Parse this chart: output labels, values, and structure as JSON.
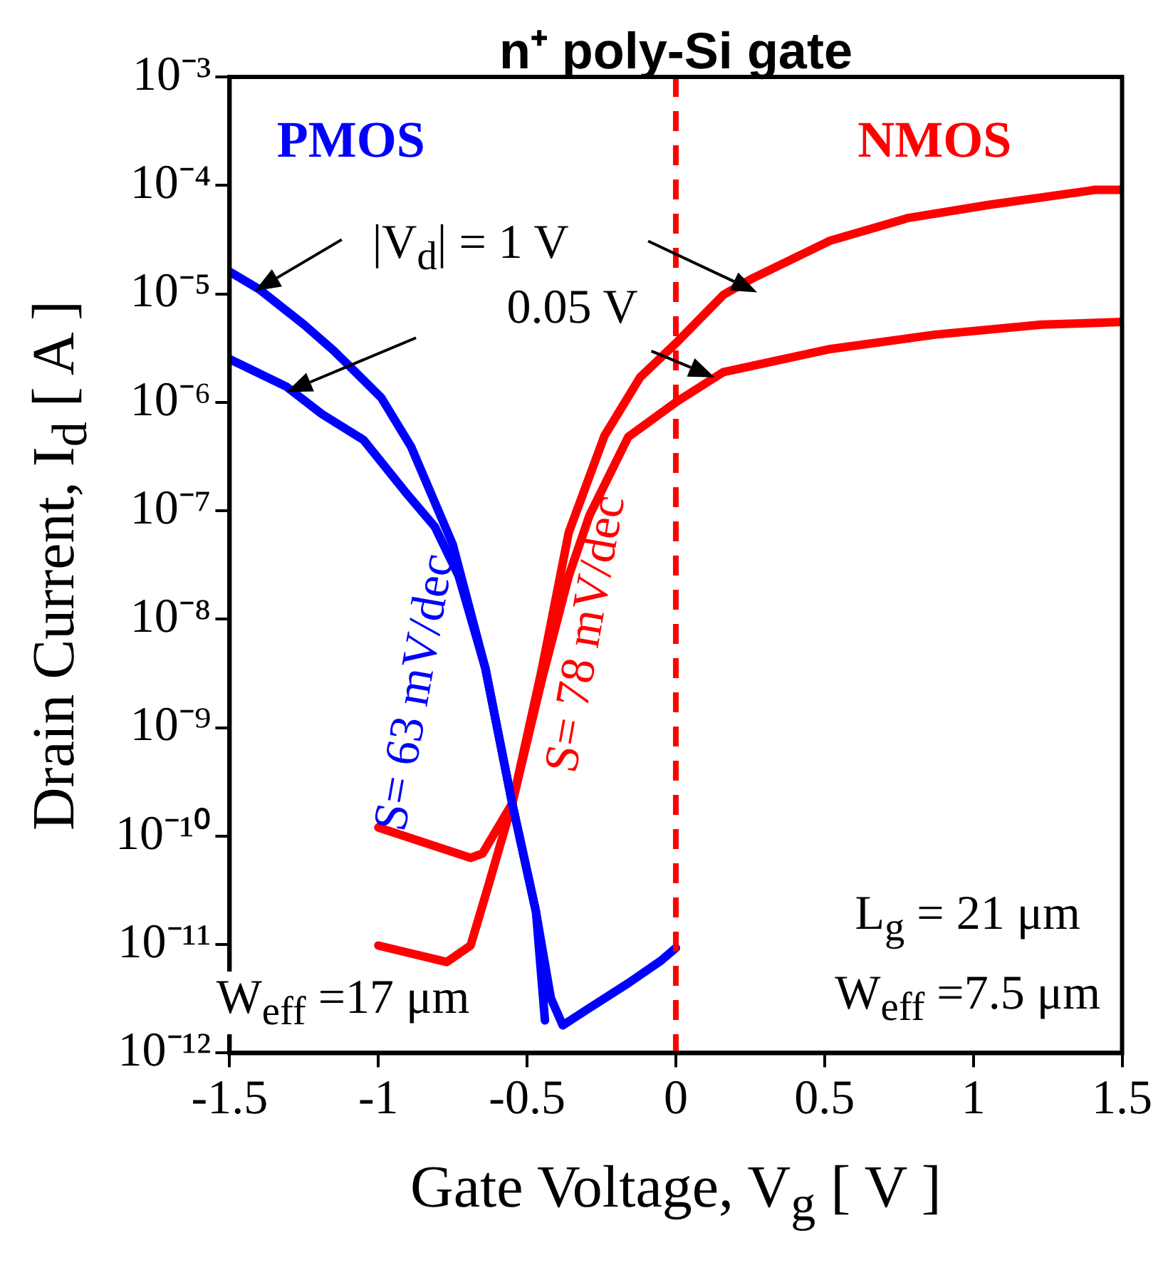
{
  "chart_data": {
    "type": "line",
    "title": "n⁺ poly-Si gate",
    "xlabel": "Gate Voltage, V$_{g}$ [ V ]",
    "ylabel": "Drain Current, I$_{d}$ [ A ]",
    "log": "y",
    "grid": false,
    "legend": false,
    "marker": "none",
    "line_style": "solid",
    "xlim": [
      -1.5,
      1.5
    ],
    "xticks": [
      -1.5,
      -1,
      -0.5,
      0,
      0.5,
      1,
      1.5
    ],
    "ylim": [
      1e-12,
      0.001
    ],
    "yticks": [
      {
        "value": 1e-12,
        "label": "10⁻¹²"
      },
      {
        "value": 1e-11,
        "label": "10⁻¹¹"
      },
      {
        "value": 1e-10,
        "label": "10⁻¹⁰"
      },
      {
        "value": 1e-09,
        "label": "10⁻⁹"
      },
      {
        "value": 1e-08,
        "label": "10⁻⁸"
      },
      {
        "value": 1e-07,
        "label": "10⁻⁷"
      },
      {
        "value": 1e-06,
        "label": "10⁻⁶"
      },
      {
        "value": 1e-05,
        "label": "10⁻⁵"
      },
      {
        "value": 0.0001,
        "label": "10⁻⁴"
      },
      {
        "value": 0.001,
        "label": "10⁻³"
      }
    ],
    "series": [
      {
        "color": "#0000ff",
        "x": [
          -1.5,
          -1.4,
          -1.25,
          -1.15,
          -0.99,
          -0.89,
          -0.75,
          -0.64,
          -0.55,
          -0.47,
          -0.44
        ],
        "values": [
          1.6e-05,
          1.1e-05,
          5.2e-06,
          3e-06,
          1.1e-06,
          3.9e-07,
          4.9e-08,
          3.5e-09,
          2e-10,
          2e-11,
          2e-12
        ]
      },
      {
        "color": "#0000ff",
        "x": [
          -1.5,
          -1.31,
          -1.19,
          -1.05,
          -0.91,
          -0.81,
          -0.73,
          -0.64,
          -0.55,
          -0.47,
          -0.42,
          -0.38,
          -0.3,
          -0.16,
          -0.05,
          0
        ],
        "values": [
          2.5e-06,
          1.4e-06,
          7.8e-07,
          4.5e-07,
          1.5e-07,
          7.1e-08,
          2.5e-08,
          3.5e-09,
          2e-10,
          2e-11,
          3.2e-12,
          1.8e-12,
          2.5e-12,
          4.4e-12,
          7.1e-12,
          9.3e-12
        ]
      },
      {
        "color": "#ff0000",
        "x": [
          -1,
          -0.77,
          -0.69,
          -0.63,
          -0.55,
          -0.45,
          -0.36,
          -0.24,
          -0.12,
          0,
          0.16,
          0.26,
          0.52,
          0.78,
          1.05,
          1.41,
          1.5
        ],
        "values": [
          9.8e-12,
          6.9e-12,
          9.8e-12,
          3.5e-11,
          2e-10,
          3.5e-09,
          6.3e-08,
          4.9e-07,
          1.7e-06,
          3.5e-06,
          9.8e-06,
          1.4e-05,
          3.1e-05,
          5e-05,
          6.6e-05,
          9.1e-05,
          9.1e-05
        ]
      },
      {
        "color": "#ff0000",
        "x": [
          -1,
          -0.69,
          -0.65,
          -0.55,
          -0.45,
          -0.36,
          -0.29,
          -0.16,
          0,
          0.16,
          0.52,
          0.87,
          1.23,
          1.5
        ],
        "values": [
          1.2e-10,
          6.3e-11,
          6.9e-11,
          2e-10,
          2.8e-09,
          2.5e-08,
          9.1e-08,
          4.8e-07,
          1e-06,
          1.9e-06,
          3.1e-06,
          4.2e-06,
          5.2e-06,
          5.5e-06
        ]
      }
    ],
    "ref_lines": [
      {
        "axis": "x",
        "value": 0,
        "color": "#ff0000",
        "line_style": "dashed"
      }
    ],
    "annotations": [
      "PMOS",
      "NMOS",
      "|V$_{d}$| = 1 V",
      {
        "text": "0.05 V",
        "x": 0.13,
        "y": 1.7e-06
      },
      "S= 63 mV/dec",
      "S= 78 mV/dec",
      "W$_{eff}$ =17 μm",
      "L$_{g}$ = 21 μm",
      "W$_{eff}$ =7.5 μm"
    ]
  }
}
